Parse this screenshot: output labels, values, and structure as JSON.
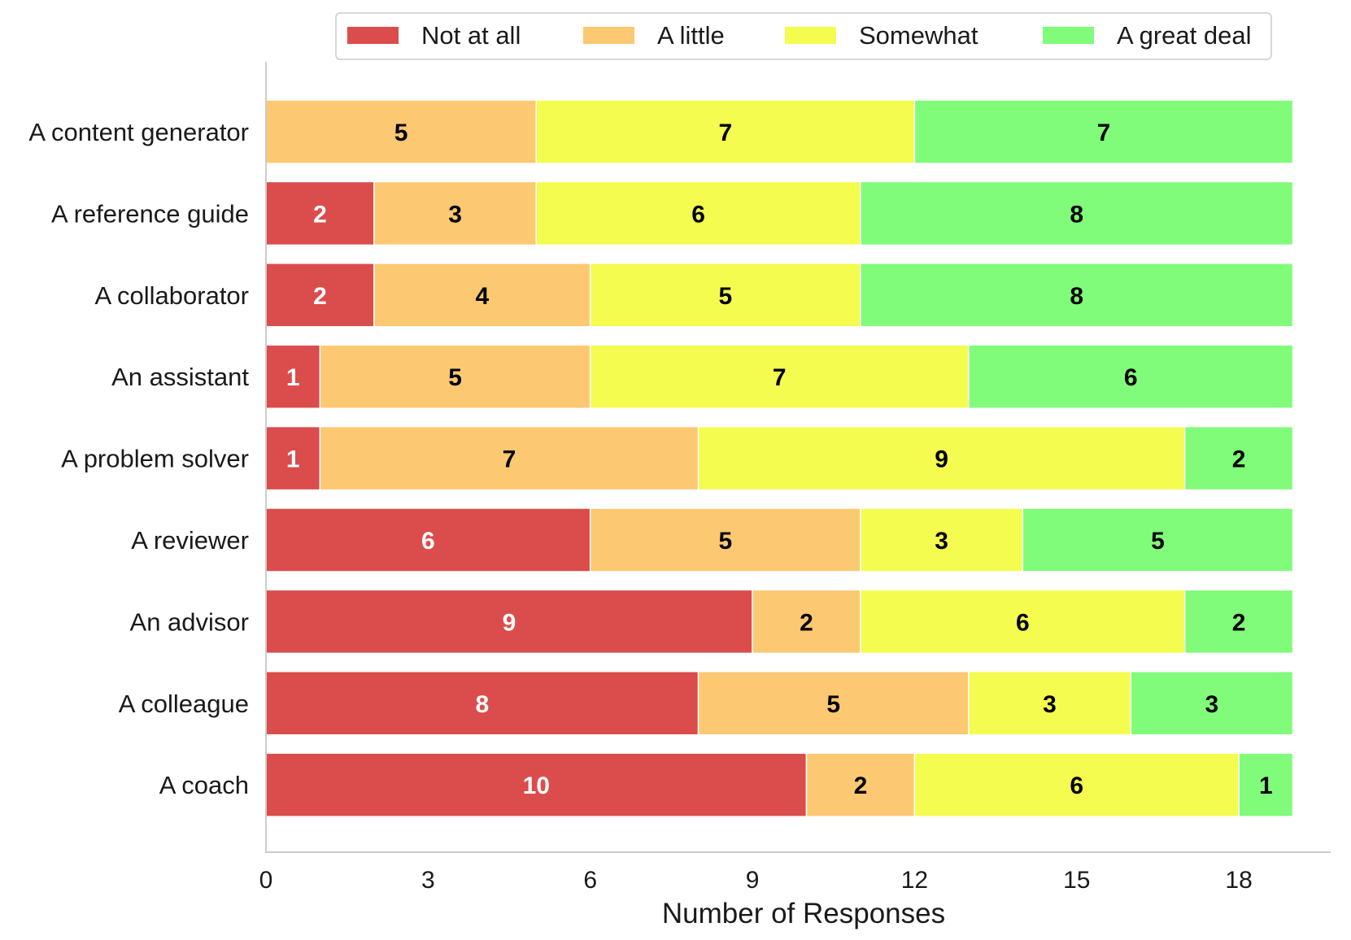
{
  "chart_data": {
    "type": "bar",
    "orientation": "horizontal",
    "stacked": true,
    "title": "",
    "xlabel": "Number of Responses",
    "ylabel": "",
    "xlim": [
      0,
      19.6
    ],
    "x_ticks": [
      0,
      3,
      6,
      9,
      12,
      15,
      18
    ],
    "categories": [
      "A content generator",
      "A reference guide",
      "A collaborator",
      "An assistant",
      "A problem solver",
      "A reviewer",
      "An advisor",
      "A colleague",
      "A coach"
    ],
    "series": [
      {
        "name": "Not at all",
        "color": "#db4c4c",
        "label_color": "#ffffff",
        "values": [
          0,
          2,
          2,
          1,
          1,
          6,
          9,
          8,
          10
        ]
      },
      {
        "name": "A little",
        "color": "#fdc872",
        "label_color": "#000000",
        "values": [
          5,
          3,
          4,
          5,
          7,
          5,
          2,
          5,
          2
        ]
      },
      {
        "name": "Somewhat",
        "color": "#f4fc4f",
        "label_color": "#000000",
        "values": [
          7,
          6,
          5,
          7,
          9,
          3,
          6,
          3,
          6
        ]
      },
      {
        "name": "A great deal",
        "color": "#80fc7a",
        "label_color": "#000000",
        "values": [
          7,
          8,
          8,
          6,
          2,
          5,
          2,
          3,
          1
        ]
      }
    ],
    "legend_position": "top",
    "grid": false
  }
}
